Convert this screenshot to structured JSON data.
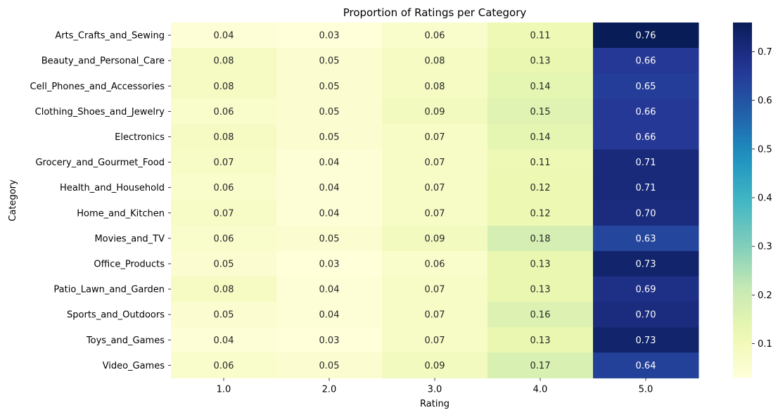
{
  "chart_data": {
    "type": "heatmap",
    "title": "Proportion of Ratings per Category",
    "xlabel": "Rating",
    "ylabel": "Category",
    "x_categories": [
      "1.0",
      "2.0",
      "3.0",
      "4.0",
      "5.0"
    ],
    "y_categories": [
      "Arts_Crafts_and_Sewing",
      "Beauty_and_Personal_Care",
      "Cell_Phones_and_Accessories",
      "Clothing_Shoes_and_Jewelry",
      "Electronics",
      "Grocery_and_Gourmet_Food",
      "Health_and_Household",
      "Home_and_Kitchen",
      "Movies_and_TV",
      "Office_Products",
      "Patio_Lawn_and_Garden",
      "Sports_and_Outdoors",
      "Toys_and_Games",
      "Video_Games"
    ],
    "values": [
      [
        0.04,
        0.03,
        0.06,
        0.11,
        0.76
      ],
      [
        0.08,
        0.05,
        0.08,
        0.13,
        0.66
      ],
      [
        0.08,
        0.05,
        0.08,
        0.14,
        0.65
      ],
      [
        0.06,
        0.05,
        0.09,
        0.15,
        0.66
      ],
      [
        0.08,
        0.05,
        0.07,
        0.14,
        0.66
      ],
      [
        0.07,
        0.04,
        0.07,
        0.11,
        0.71
      ],
      [
        0.06,
        0.04,
        0.07,
        0.12,
        0.71
      ],
      [
        0.07,
        0.04,
        0.07,
        0.12,
        0.7
      ],
      [
        0.06,
        0.05,
        0.09,
        0.18,
        0.63
      ],
      [
        0.05,
        0.03,
        0.06,
        0.13,
        0.73
      ],
      [
        0.08,
        0.04,
        0.07,
        0.13,
        0.69
      ],
      [
        0.05,
        0.04,
        0.07,
        0.16,
        0.7
      ],
      [
        0.04,
        0.03,
        0.07,
        0.13,
        0.73
      ],
      [
        0.06,
        0.05,
        0.09,
        0.17,
        0.64
      ]
    ],
    "colormap": "YlGnBu",
    "colorbar": {
      "vmin": 0.03,
      "vmax": 0.76,
      "ticks": [
        "0.1",
        "0.2",
        "0.3",
        "0.4",
        "0.5",
        "0.6",
        "0.7"
      ]
    }
  }
}
